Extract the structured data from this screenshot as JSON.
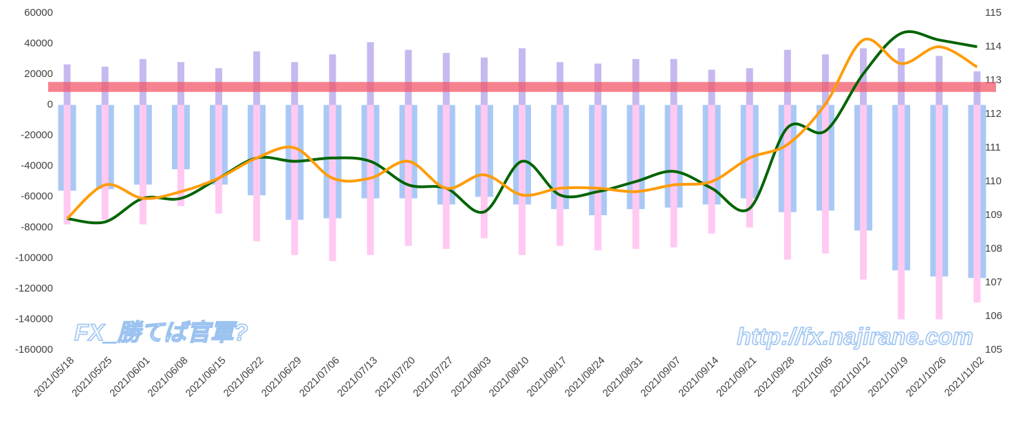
{
  "chart_data": {
    "type": "bar_line",
    "categories": [
      "2021/05/18",
      "2021/05/25",
      "2021/06/01",
      "2021/06/08",
      "2021/06/15",
      "2021/06/22",
      "2021/06/29",
      "2021/07/06",
      "2021/07/13",
      "2021/07/20",
      "2021/07/27",
      "2021/08/03",
      "2021/08/10",
      "2021/08/17",
      "2021/08/24",
      "2021/08/31",
      "2021/09/07",
      "2021/09/14",
      "2021/09/21",
      "2021/09/28",
      "2021/10/05",
      "2021/10/12",
      "2021/10/19",
      "2021/10/26",
      "2021/11/02"
    ],
    "series": [
      {
        "kind": "bar",
        "color": "#c6b9ef",
        "width": 10,
        "values": [
          26500,
          25000,
          30000,
          28000,
          24000,
          35000,
          28000,
          33000,
          41000,
          36000,
          34000,
          31000,
          37000,
          28000,
          27000,
          30000,
          30000,
          23000,
          24000,
          36000,
          33000,
          37000,
          37000,
          32000,
          22000
        ]
      },
      {
        "kind": "bar",
        "color": "#a9c8f6",
        "width": 26,
        "values": [
          -56000,
          -55000,
          -52000,
          -42000,
          -52000,
          -59000,
          -75000,
          -74000,
          -61000,
          -61000,
          -65000,
          -60000,
          -65000,
          -68000,
          -72000,
          -68000,
          -67000,
          -65000,
          -61000,
          -70000,
          -69000,
          -82000,
          -108000,
          -112000,
          -113000
        ]
      },
      {
        "kind": "bar",
        "color": "#ffc9f2",
        "width": 10,
        "values": [
          -78000,
          -75000,
          -78000,
          -66000,
          -71000,
          -89000,
          -98000,
          -102000,
          -98000,
          -92000,
          -94000,
          -87000,
          -98000,
          -92000,
          -95000,
          -94000,
          -93000,
          -84000,
          -80000,
          -101000,
          -97000,
          -114000,
          -140000,
          -140000,
          -129000
        ]
      },
      {
        "kind": "line",
        "axis": "y2",
        "color": "#006400",
        "values": [
          108.9,
          108.8,
          109.5,
          109.5,
          110.1,
          110.7,
          110.6,
          110.7,
          110.6,
          109.9,
          109.8,
          109.1,
          110.6,
          109.6,
          109.7,
          110.0,
          110.3,
          109.8,
          109.2,
          111.6,
          111.5,
          113.2,
          114.4,
          114.2,
          114.0
        ]
      },
      {
        "kind": "line",
        "axis": "y2",
        "color": "#ff9c0a",
        "values": [
          108.9,
          109.9,
          109.5,
          109.7,
          110.1,
          110.7,
          111.0,
          110.1,
          110.1,
          110.6,
          109.8,
          110.2,
          109.6,
          109.8,
          109.8,
          109.7,
          109.9,
          110.0,
          110.7,
          111.1,
          112.3,
          114.2,
          113.5,
          114.0,
          113.4
        ]
      }
    ],
    "reference_band": {
      "from": 8500,
      "to": 15000,
      "color": "#f25a6a"
    },
    "ylim": [
      -160000,
      60000
    ],
    "yticks": [
      -160000,
      -140000,
      -120000,
      -100000,
      -80000,
      -60000,
      -40000,
      -20000,
      0,
      20000,
      40000,
      60000
    ],
    "y2lim": [
      105,
      115
    ],
    "y2ticks": [
      105,
      106,
      107,
      108,
      109,
      110,
      111,
      112,
      113,
      114,
      115
    ],
    "grid": false,
    "watermarks": [
      "FX_勝てば官軍?",
      "http://fx.najirane.com"
    ]
  }
}
